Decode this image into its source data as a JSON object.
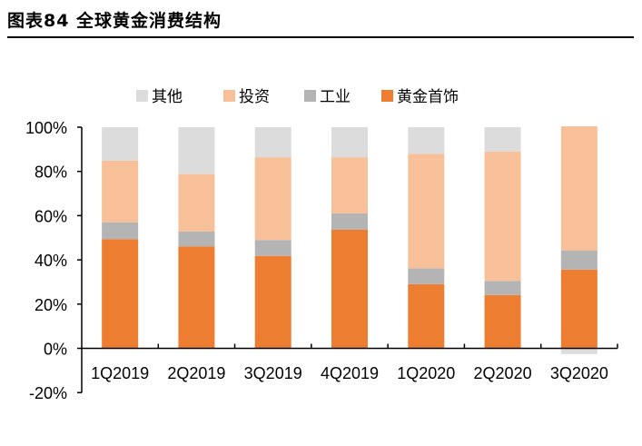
{
  "header": {
    "title": "图表84    全球黄金消费结构"
  },
  "chart_data": {
    "type": "bar",
    "stacked": true,
    "categories": [
      "1Q2019",
      "2Q2019",
      "3Q2019",
      "4Q2019",
      "1Q2020",
      "2Q2020",
      "3Q2020"
    ],
    "series": [
      {
        "name": "黄金首饰",
        "color": "#ED7D31",
        "values": [
          49.4,
          46.1,
          41.8,
          53.7,
          29.0,
          24.1,
          35.6
        ]
      },
      {
        "name": "工业",
        "color": "#B4B4B4",
        "values": [
          7.6,
          6.8,
          7.2,
          7.3,
          7.2,
          6.4,
          8.7
        ]
      },
      {
        "name": "投资",
        "color": "#F8C098",
        "values": [
          27.8,
          25.9,
          37.4,
          25.4,
          51.8,
          58.4,
          56.1
        ]
      },
      {
        "name": "其他",
        "color": "#DCDCDC",
        "values": [
          15.2,
          21.2,
          13.6,
          13.6,
          12.0,
          11.1,
          -2.6
        ]
      }
    ],
    "legend_order": [
      "其他",
      "投资",
      "工业",
      "黄金首饰"
    ],
    "legend_position": "top",
    "yticks": [
      "100%",
      "80%",
      "60%",
      "40%",
      "20%",
      "0%",
      "-20%"
    ],
    "ylim": [
      -20,
      100
    ],
    "grid": false
  }
}
